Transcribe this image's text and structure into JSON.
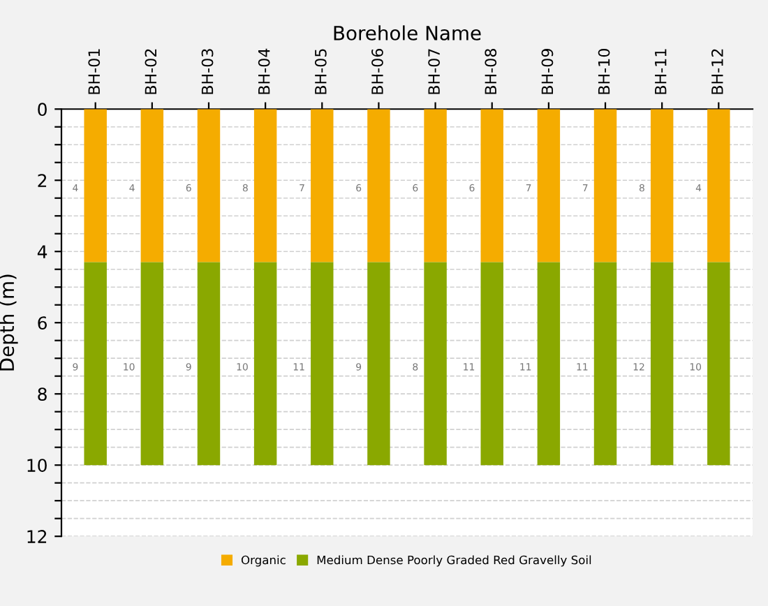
{
  "chart_data": {
    "type": "bar",
    "stacked": true,
    "xlabel": "Borehole Name",
    "ylabel": "Depth (m)",
    "categories": [
      "BH-01",
      "BH-02",
      "BH-03",
      "BH-04",
      "BH-05",
      "BH-06",
      "BH-07",
      "BH-08",
      "BH-09",
      "BH-10",
      "BH-11",
      "BH-12"
    ],
    "series": [
      {
        "name": "Organic",
        "color": "#f5ac00",
        "values": [
          4.3,
          4.3,
          4.3,
          4.3,
          4.3,
          4.3,
          4.3,
          4.3,
          4.3,
          4.3,
          4.3,
          4.3
        ]
      },
      {
        "name": "Medium Dense Poorly Graded Red Gravelly Soil",
        "color": "#8aa800",
        "values": [
          5.7,
          5.7,
          5.7,
          5.7,
          5.7,
          5.7,
          5.7,
          5.7,
          5.7,
          5.7,
          5.7,
          5.7
        ]
      }
    ],
    "ylim": [
      12,
      0
    ],
    "yticks": [
      0,
      {
        "value": 0.5,
        "label": null
      },
      2,
      {
        "value": 1,
        "label": null
      },
      {
        "value": 1.5,
        "label": null
      },
      {
        "value": 2.5,
        "label": null
      },
      {
        "value": 3,
        "label": null
      },
      {
        "value": 3.5,
        "label": null
      },
      4,
      {
        "value": 4.5,
        "label": null
      },
      {
        "value": 5,
        "label": null
      },
      {
        "value": 5.5,
        "label": null
      },
      6,
      {
        "value": 6.5,
        "label": null
      },
      {
        "value": 7,
        "label": null
      },
      {
        "value": 7.5,
        "label": null
      },
      8,
      {
        "value": 8.5,
        "label": null
      },
      {
        "value": 9,
        "label": null
      },
      {
        "value": 9.5,
        "label": null
      },
      10,
      {
        "value": 10.5,
        "label": null
      },
      {
        "value": 11,
        "label": null
      },
      {
        "value": 11.5,
        "label": null
      },
      12
    ],
    "grid": "y",
    "legend": "bottom",
    "annotations": [
      "4",
      "4",
      "6",
      "8",
      "7",
      "6",
      "6",
      "6",
      "7",
      "7",
      "8",
      "4",
      "9",
      "10",
      "9",
      "10",
      "11",
      "9",
      "8",
      "11",
      "11",
      "11",
      "12",
      "10"
    ]
  }
}
